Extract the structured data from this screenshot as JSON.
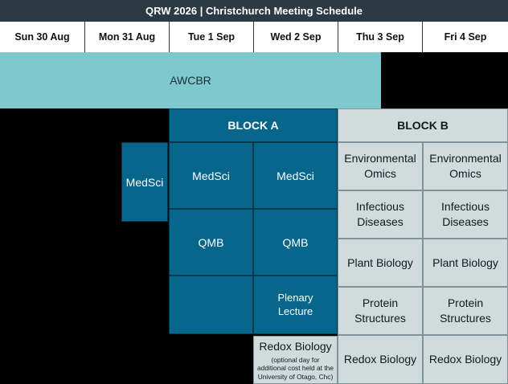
{
  "header": {
    "title": "QRW 2026 | Christchurch Meeting Schedule"
  },
  "days": [
    "Sun 30 Aug",
    "Mon 31 Aug",
    "Tue 1 Sep",
    "Wed 2 Sep",
    "Thu 3 Sep",
    "Fri 4 Sep"
  ],
  "awcbr": {
    "label": "AWCBR"
  },
  "block_a": {
    "label": "BLOCK A",
    "medsci_mon": "MedSci",
    "medsci_tue": "MedSci",
    "medsci_wed": "MedSci",
    "qmb_tue": "QMB",
    "qmb_wed": "QMB",
    "plenary_line1": "Plenary",
    "plenary_line2": "Lecture",
    "redox_wed": {
      "title": "Redox Biology",
      "note_line1": "(optional day for",
      "note_line2": "additional cost held at the",
      "note_line3": "University of Otago, Chc)"
    }
  },
  "block_b": {
    "label": "BLOCK B",
    "thu": {
      "env_line1": "Environmental",
      "env_line2": "Omics",
      "inf_line1": "Infectious",
      "inf_line2": "Diseases",
      "plant": "Plant Biology",
      "prot_line1": "Protein",
      "prot_line2": "Structures",
      "redox": "Redox Biology"
    },
    "fri": {
      "env_line1": "Environmental",
      "env_line2": "Omics",
      "inf_line1": "Infectious",
      "inf_line2": "Diseases",
      "plant": "Plant Biology",
      "prot_line1": "Protein",
      "prot_line2": "Structures",
      "redox": "Redox Biology"
    }
  },
  "colors": {
    "title_bg": "#2c3a43",
    "awcbr_bg": "#7dc9cd",
    "block_a_bg": "#07668b",
    "block_b_bg": "#d1dbdc",
    "background": "#000000"
  }
}
